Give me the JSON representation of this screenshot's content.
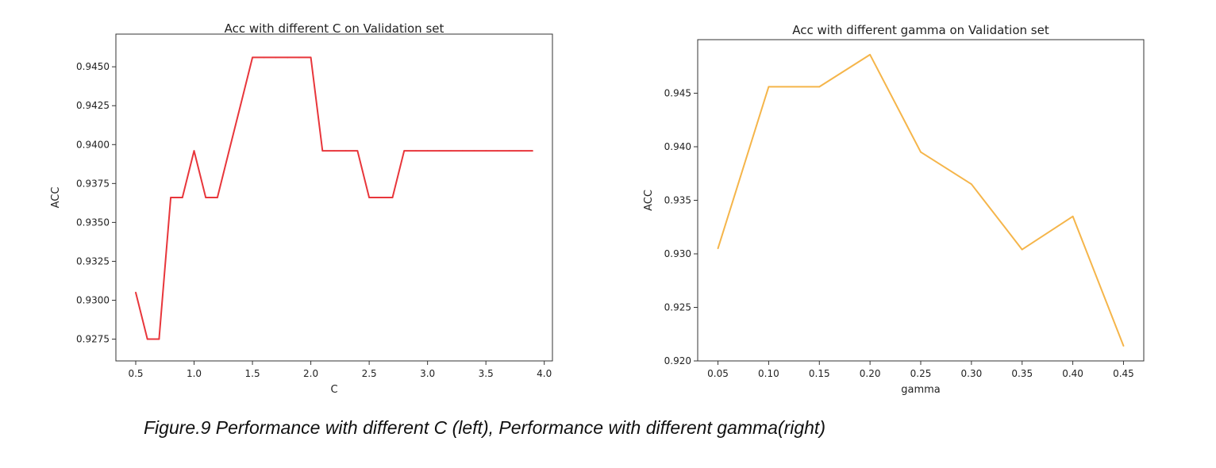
{
  "caption": "Figure.9 Performance with different C (left), Performance with different gamma(right)",
  "chart_data": [
    {
      "type": "line",
      "title": "Acc with different C on Validation set",
      "xlabel": "C",
      "ylabel": "ACC",
      "xlim": [
        0.33,
        4.07
      ],
      "ylim": [
        0.9261,
        0.9471
      ],
      "xticks": [
        0.5,
        1.0,
        1.5,
        2.0,
        2.5,
        3.0,
        3.5,
        4.0
      ],
      "xtick_labels": [
        "0.5",
        "1.0",
        "1.5",
        "2.0",
        "2.5",
        "3.0",
        "3.5",
        "4.0"
      ],
      "yticks": [
        0.9275,
        0.93,
        0.9325,
        0.935,
        0.9375,
        0.94,
        0.9425,
        0.945
      ],
      "ytick_labels": [
        "0.9275",
        "0.9300",
        "0.9325",
        "0.9350",
        "0.9375",
        "0.9400",
        "0.9425",
        "0.9450"
      ],
      "grid": false,
      "color": "#e8363b",
      "series": [
        {
          "x": [
            0.5,
            0.6,
            0.7,
            0.8,
            0.9,
            1.0,
            1.1,
            1.2,
            1.3,
            1.4,
            1.5,
            1.6,
            1.7,
            1.8,
            1.9,
            2.0,
            2.1,
            2.2,
            2.3,
            2.4,
            2.5,
            2.6,
            2.7,
            2.8,
            2.9,
            3.0,
            3.1,
            3.2,
            3.3,
            3.4,
            3.5,
            3.6,
            3.7,
            3.8,
            3.9
          ],
          "values": [
            0.9305,
            0.9275,
            0.9275,
            0.9366,
            0.9366,
            0.9396,
            0.9366,
            0.9366,
            0.9396,
            0.9426,
            0.9456,
            0.9456,
            0.9456,
            0.9456,
            0.9456,
            0.9456,
            0.9396,
            0.9396,
            0.9396,
            0.9396,
            0.9366,
            0.9366,
            0.9366,
            0.9396,
            0.9396,
            0.9396,
            0.9396,
            0.9396,
            0.9396,
            0.9396,
            0.9396,
            0.9396,
            0.9396,
            0.9396,
            0.9396
          ]
        }
      ]
    },
    {
      "type": "line",
      "title": "Acc with different gamma on Validation set",
      "xlabel": "gamma",
      "ylabel": "ACC",
      "xlim": [
        0.03,
        0.47
      ],
      "ylim": [
        0.92,
        0.95
      ],
      "xticks": [
        0.05,
        0.1,
        0.15,
        0.2,
        0.25,
        0.3,
        0.35,
        0.4,
        0.45
      ],
      "xtick_labels": [
        "0.05",
        "0.10",
        "0.15",
        "0.20",
        "0.25",
        "0.30",
        "0.35",
        "0.40",
        "0.45"
      ],
      "yticks": [
        0.92,
        0.925,
        0.93,
        0.935,
        0.94,
        0.945
      ],
      "ytick_labels": [
        "0.920",
        "0.925",
        "0.930",
        "0.935",
        "0.940",
        "0.945"
      ],
      "grid": false,
      "color": "#f5b54a",
      "series": [
        {
          "x": [
            0.05,
            0.1,
            0.15,
            0.2,
            0.25,
            0.3,
            0.35,
            0.4,
            0.45
          ],
          "values": [
            0.9305,
            0.9456,
            0.9456,
            0.9486,
            0.9395,
            0.9365,
            0.9304,
            0.9335,
            0.9214
          ]
        }
      ]
    }
  ]
}
